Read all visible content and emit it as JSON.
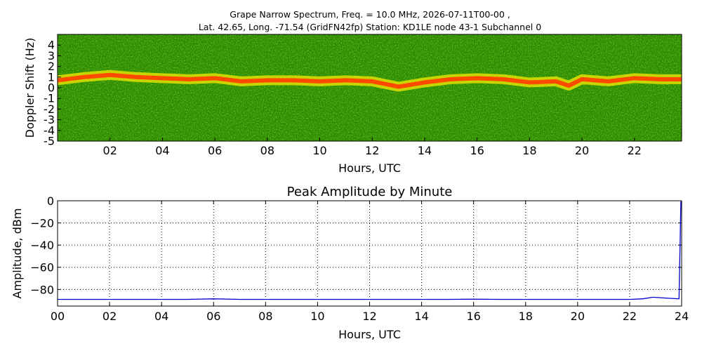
{
  "title_line1": "Grape Narrow Spectrum, Freq. = 10.0 MHz, 2026-07-11T00-00 ,",
  "title_line2": "Lat.  42.65, Long. -71.54 (GridFN42fp) Station: KD1LE node 43-1 Subchannel 0",
  "chart_data": [
    {
      "type": "heatmap",
      "xlabel": "Hours, UTC",
      "ylabel": "Doppler Shift (Hz)",
      "xlim": [
        0,
        23.8
      ],
      "ylim": [
        -5,
        5
      ],
      "x_ticks": [
        2,
        4,
        6,
        8,
        10,
        12,
        14,
        16,
        18,
        20,
        22
      ],
      "x_tick_labels": [
        "02",
        "04",
        "06",
        "08",
        "10",
        "12",
        "14",
        "16",
        "18",
        "20",
        "22"
      ],
      "y_ticks": [
        4,
        3,
        2,
        1,
        0,
        -1,
        -2,
        -3,
        -4,
        -5
      ],
      "y_tick_labels": [
        "4",
        "3",
        "2",
        "1",
        "0",
        "-1",
        "-2",
        "-3",
        "-4",
        "-5"
      ],
      "colors": {
        "background": "#2a8a00",
        "noise": "#5fbf10",
        "mid": "#e0e000",
        "peak": "#ff4a00"
      },
      "carrier_trace": {
        "hours": [
          0,
          1,
          2,
          3,
          4,
          5,
          6,
          7,
          8,
          9,
          10,
          11,
          12,
          13,
          14,
          15,
          16,
          17,
          18,
          19,
          19.5,
          20,
          21,
          22,
          23,
          23.8
        ],
        "doppler_hz": [
          0.7,
          1.0,
          1.2,
          1.0,
          0.9,
          0.8,
          0.9,
          0.6,
          0.7,
          0.7,
          0.6,
          0.7,
          0.6,
          0.1,
          0.5,
          0.8,
          0.9,
          0.8,
          0.5,
          0.6,
          0.2,
          0.8,
          0.6,
          0.9,
          0.8,
          0.8
        ]
      }
    },
    {
      "type": "line",
      "title": "Peak Amplitude by Minute",
      "xlabel": "Hours, UTC",
      "ylabel": "Amplitude, dBm",
      "xlim": [
        0,
        24
      ],
      "ylim": [
        -95,
        0
      ],
      "grid": true,
      "x_ticks": [
        0,
        2,
        4,
        6,
        8,
        10,
        12,
        14,
        16,
        18,
        20,
        22,
        24
      ],
      "x_tick_labels": [
        "00",
        "02",
        "04",
        "06",
        "08",
        "10",
        "12",
        "14",
        "16",
        "18",
        "20",
        "22",
        "24"
      ],
      "y_ticks": [
        0,
        -20,
        -40,
        -60,
        -80
      ],
      "y_tick_labels": [
        "0",
        "−20",
        "−40",
        "−60",
        "−80"
      ],
      "series_color": "#0000cc",
      "x": [
        0,
        1,
        2,
        3,
        4,
        5,
        6,
        7,
        8,
        9,
        10,
        11,
        12,
        13,
        14,
        15,
        16,
        17,
        18,
        19,
        20,
        21,
        22,
        22.5,
        22.9,
        23.5,
        23.9,
        23.97,
        24
      ],
      "values": [
        -89,
        -89,
        -89,
        -89,
        -89,
        -89,
        -88.5,
        -89,
        -89,
        -89,
        -89,
        -89,
        -89,
        -89,
        -89,
        -89,
        -88.8,
        -89,
        -89,
        -89,
        -89,
        -89,
        -89,
        -88.5,
        -87,
        -88,
        -88.5,
        -1,
        -1
      ]
    }
  ]
}
